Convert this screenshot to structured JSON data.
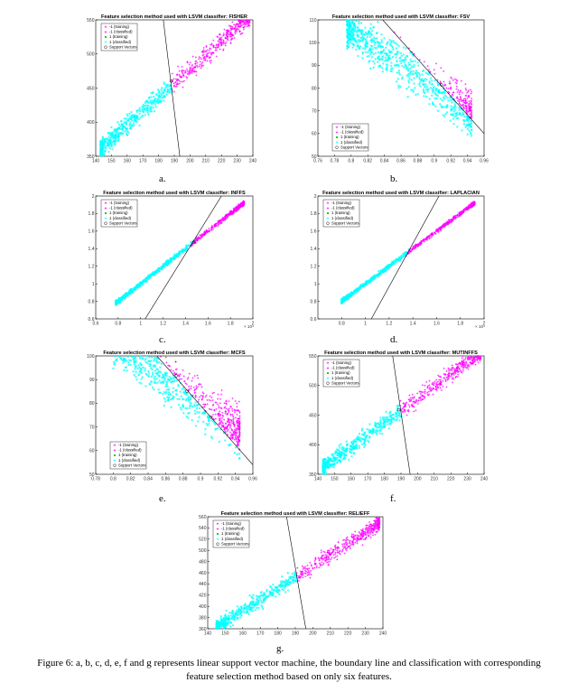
{
  "figure_caption": {
    "line1": "Figure 6: a, b, c, d, e, f and g represents linear support vector machine, the boundary line and classification with corresponding",
    "line2": "feature selection method based on only six features."
  },
  "legend_labels": [
    "-1 (training)",
    "-1 (classified)",
    "1 (training)",
    "1 (classified)",
    "Support Vectors"
  ],
  "colors": {
    "class_neg": "#ff00ff",
    "class_pos": "#00ffff",
    "class_pos_training": "#00cc00",
    "support_vector": "#000000",
    "boundary": "#000000"
  },
  "chart_data": [
    {
      "panel": "a.",
      "type": "scatter",
      "title": "Feature selection method used with LSVM classifier: FISHER",
      "xlim": [
        140,
        240
      ],
      "ylim": [
        350,
        550
      ],
      "xticks": [
        "140",
        "150",
        "160",
        "170",
        "180",
        "190",
        "200",
        "210",
        "220",
        "230",
        "240"
      ],
      "yticks": [
        "350",
        "400",
        "450",
        "500",
        "550"
      ],
      "x_exponent": "",
      "legend": "top-left",
      "cloud": {
        "x_range": [
          143,
          238
        ],
        "slope": 2.06,
        "intercept": 66,
        "spread": 10
      },
      "boundary": {
        "x": [
          183,
          193.5
        ],
        "y": [
          550,
          350
        ]
      }
    },
    {
      "panel": "b.",
      "type": "scatter",
      "title": "Feature selection method used with LSVM classifier: FSV",
      "xlim": [
        0.76,
        0.96
      ],
      "ylim": [
        50,
        110
      ],
      "xticks": [
        "0.76",
        "0.78",
        "0.8",
        "0.82",
        "0.84",
        "0.86",
        "0.88",
        "0.9",
        "0.92",
        "0.94",
        "0.96"
      ],
      "yticks": [
        "50",
        "60",
        "70",
        "80",
        "90",
        "100",
        "110"
      ],
      "x_exponent": "",
      "legend": "bottom-left",
      "cloud": {
        "x_range": [
          0.795,
          0.945
        ],
        "slope": -260,
        "intercept": 314,
        "spread": 7
      },
      "boundary": {
        "x": [
          0.838,
          0.96
        ],
        "y": [
          110,
          60
        ]
      }
    },
    {
      "panel": "c.",
      "type": "scatter",
      "title": "Feature selection method used with LSVM classifier: INFFS",
      "xlim": [
        0.6,
        2.0
      ],
      "ylim": [
        0.6,
        2.0
      ],
      "xticks": [
        "0.6",
        "0.8",
        "1",
        "1.2",
        "1.4",
        "1.6",
        "1.8",
        "2"
      ],
      "yticks": [
        "0.6",
        "0.8",
        "1",
        "1.2",
        "1.4",
        "1.6",
        "1.8",
        "2"
      ],
      "x_exponent": "× 10⁴",
      "legend": "top-left",
      "cloud": {
        "x_range": [
          0.78,
          1.92
        ],
        "slope": 1.0,
        "intercept": 0.0,
        "spread": 0.012
      },
      "boundary": {
        "x": [
          1.04,
          1.72
        ],
        "y": [
          0.6,
          2.0
        ]
      }
    },
    {
      "panel": "d.",
      "type": "scatter",
      "title": "Feature selection method used with LSVM classifier: LAPLACIAN",
      "xlim": [
        0.6,
        2.0
      ],
      "ylim": [
        0.6,
        2.0
      ],
      "xticks": [
        "0.8",
        "1",
        "1.2",
        "1.4",
        "1.6",
        "1.8",
        "2"
      ],
      "yticks": [
        "0.6",
        "0.8",
        "1",
        "1.2",
        "1.4",
        "1.6",
        "1.8",
        "2"
      ],
      "x_exponent": "× 10⁴",
      "legend": "top-left",
      "cloud": {
        "x_range": [
          0.8,
          1.92
        ],
        "slope": 1.0,
        "intercept": 0.0,
        "spread": 0.01
      },
      "boundary": {
        "x": [
          1.05,
          1.62
        ],
        "y": [
          0.6,
          2.0
        ]
      }
    },
    {
      "panel": "e.",
      "type": "scatter",
      "title": "Feature selection method used with LSVM classifier: MCFS",
      "xlim": [
        0.78,
        0.96
      ],
      "ylim": [
        50,
        100
      ],
      "xticks": [
        "0.78",
        "0.8",
        "0.82",
        "0.84",
        "0.86",
        "0.88",
        "0.9",
        "0.92",
        "0.94",
        "0.96"
      ],
      "yticks": [
        "50",
        "60",
        "70",
        "80",
        "90",
        "100"
      ],
      "x_exponent": "",
      "legend": "bottom-left",
      "cloud": {
        "x_range": [
          0.8,
          0.945
        ],
        "slope": -260,
        "intercept": 314,
        "spread": 7
      },
      "boundary": {
        "x": [
          0.85,
          0.96
        ],
        "y": [
          100,
          54
        ]
      }
    },
    {
      "panel": "f.",
      "type": "scatter",
      "title": "Feature selection method used with LSVM classifier: MUTINFFS",
      "xlim": [
        140,
        240
      ],
      "ylim": [
        350,
        550
      ],
      "xticks": [
        "140",
        "150",
        "160",
        "170",
        "180",
        "190",
        "200",
        "210",
        "220",
        "230",
        "240"
      ],
      "yticks": [
        "350",
        "400",
        "450",
        "500",
        "550"
      ],
      "x_exponent": "",
      "legend": "top-left",
      "cloud": {
        "x_range": [
          143,
          238
        ],
        "slope": 2.06,
        "intercept": 66,
        "spread": 10
      },
      "boundary": {
        "x": [
          185,
          195.5
        ],
        "y": [
          550,
          350
        ]
      }
    },
    {
      "panel": "g.",
      "type": "scatter",
      "title": "Feature selection method used with LSVM classifier: RELIEFF",
      "xlim": [
        140,
        240
      ],
      "ylim": [
        360,
        560
      ],
      "xticks": [
        "140",
        "150",
        "160",
        "170",
        "180",
        "190",
        "200",
        "210",
        "220",
        "230",
        "240"
      ],
      "yticks": [
        "360",
        "380",
        "400",
        "420",
        "440",
        "460",
        "480",
        "500",
        "520",
        "540",
        "560"
      ],
      "x_exponent": "",
      "legend": "top-left",
      "cloud": {
        "x_range": [
          145,
          238
        ],
        "slope": 2.0,
        "intercept": 72,
        "spread": 10
      },
      "boundary": {
        "x": [
          185,
          196
        ],
        "y": [
          560,
          360
        ]
      }
    }
  ]
}
